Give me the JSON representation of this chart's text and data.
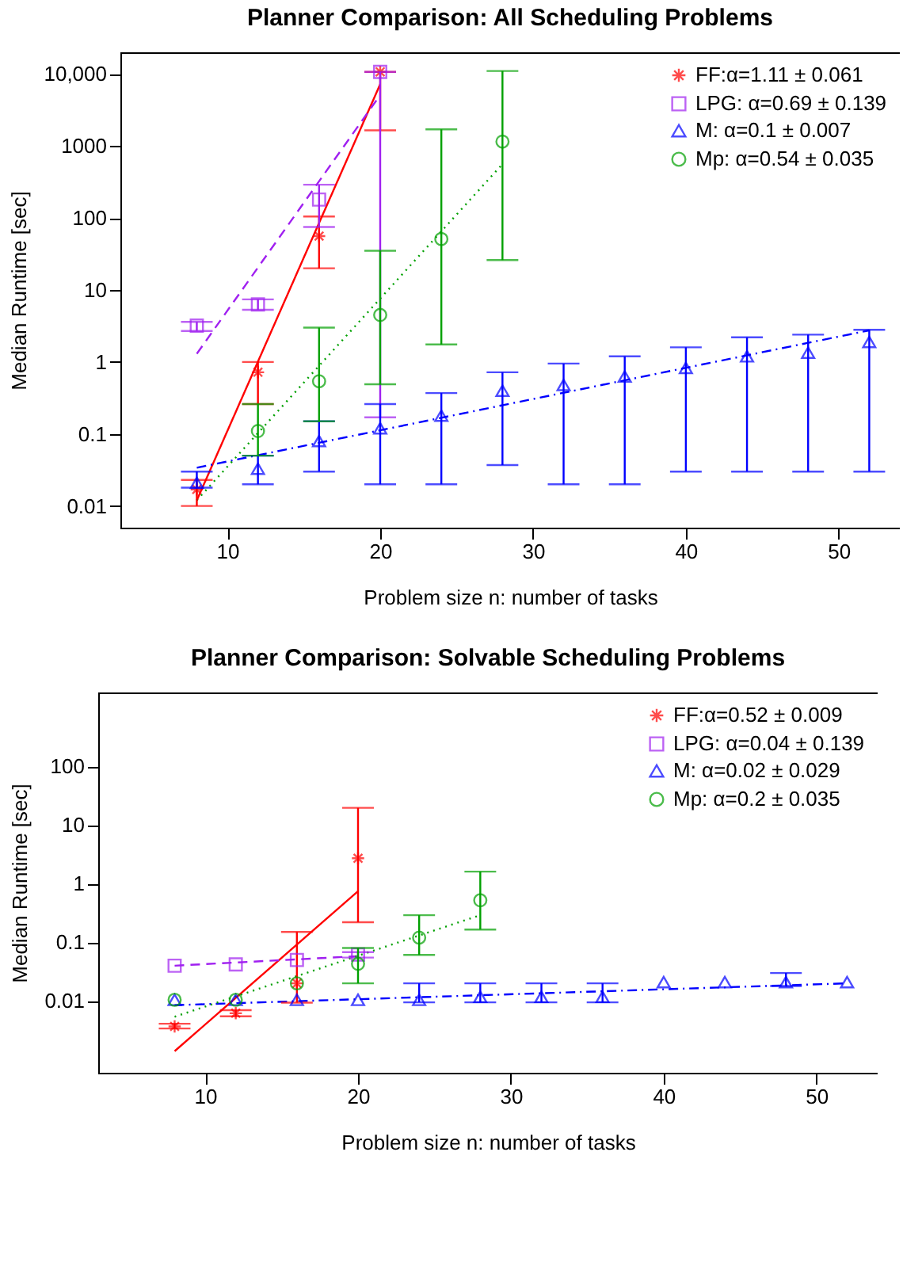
{
  "chart_data": [
    {
      "type": "scatter",
      "title": "Planner Comparison: All Scheduling Problems",
      "xlabel": "Problem size n: number of tasks",
      "ylabel": "Median Runtime [sec]",
      "log": "y",
      "grid": false,
      "legend": "top right",
      "xlim": [
        3,
        54
      ],
      "xticks": [
        10,
        20,
        30,
        40,
        50
      ],
      "ylim": [
        0.005,
        20000
      ],
      "yticks": [
        0.01,
        0.1,
        1,
        10,
        100,
        1000,
        {
          "value": 10000,
          "label": "10,000"
        }
      ],
      "series": [
        {
          "name": "FF:α=1.11 ± 0.061",
          "type": "scatter",
          "marker": "cross",
          "color": "#ff0000",
          "x": [
            8,
            12,
            16,
            20
          ],
          "values": [
            0.017,
            0.72,
            56,
            10700
          ],
          "errors": [
            [
              0.01,
              0.023
            ],
            [
              0.26,
              1.0
            ],
            [
              20,
              105
            ],
            [
              1650,
              10700
            ]
          ]
        },
        {
          "name": "LPG: α=0.69 ± 0.139",
          "type": "scatter",
          "marker": "square",
          "color": "#a020f0",
          "x": [
            8,
            12,
            16,
            20
          ],
          "values": [
            3.2,
            6.3,
            180,
            10700
          ],
          "errors": [
            [
              2.7,
              3.6
            ],
            [
              5.3,
              7.4
            ],
            [
              75,
              290
            ],
            [
              0.17,
              10700
            ]
          ]
        },
        {
          "name": "M: α=0.1 ± 0.007",
          "type": "scatter",
          "marker": "triangle",
          "color": "#0000ff",
          "x": [
            8,
            12,
            16,
            20,
            24,
            28,
            32,
            36,
            40,
            44,
            48,
            52
          ],
          "values": [
            0.021,
            0.033,
            0.08,
            0.12,
            0.18,
            0.4,
            0.48,
            0.63,
            0.83,
            1.2,
            1.35,
            1.9
          ],
          "errors": [
            [
              0.018,
              0.03
            ],
            [
              0.02,
              0.05
            ],
            [
              0.03,
              0.15
            ],
            [
              0.02,
              0.26
            ],
            [
              0.02,
              0.37
            ],
            [
              0.037,
              0.72
            ],
            [
              0.02,
              0.95
            ],
            [
              0.02,
              1.2
            ],
            [
              0.03,
              1.6
            ],
            [
              0.03,
              2.2
            ],
            [
              0.03,
              2.4
            ],
            [
              0.03,
              2.8
            ]
          ]
        },
        {
          "name": "Mp: α=0.54 ± 0.035",
          "type": "scatter",
          "marker": "circle",
          "color": "#00a000",
          "x": [
            12,
            16,
            20,
            24,
            28
          ],
          "values": [
            0.11,
            0.54,
            4.5,
            51,
            1150
          ],
          "errors": [
            [
              0.05,
              0.26
            ],
            [
              0.15,
              3.0
            ],
            [
              0.49,
              35
            ],
            [
              1.75,
              1700
            ],
            [
              26,
              11000
            ]
          ]
        },
        {
          "type": "line",
          "line_style": "solid",
          "color": "#ff0000",
          "x": [
            8,
            20
          ],
          "values": [
            0.012,
            7200
          ]
        },
        {
          "type": "line",
          "line_style": "dashed",
          "color": "#a020f0",
          "x": [
            8,
            20
          ],
          "values": [
            1.3,
            5100
          ]
        },
        {
          "type": "line",
          "line_style": "dashdot",
          "color": "#0000ff",
          "x": [
            8,
            52
          ],
          "values": [
            0.034,
            2.75
          ]
        },
        {
          "type": "line",
          "line_style": "dotted",
          "color": "#00a000",
          "x": [
            8,
            28
          ],
          "values": [
            0.012,
            560
          ]
        }
      ]
    },
    {
      "type": "scatter",
      "title": "Planner Comparison: Solvable Scheduling Problems",
      "xlabel": "Problem size n: number of tasks",
      "ylabel": "Median Runtime [sec]",
      "log": "y",
      "grid": false,
      "legend": "top right",
      "xlim": [
        3,
        54
      ],
      "xticks": [
        10,
        20,
        30,
        40,
        50
      ],
      "ylim": [
        0.0006,
        1800
      ],
      "yticks": [
        0.01,
        0.1,
        1,
        10,
        100
      ],
      "series": [
        {
          "name": "FF:α=0.52 ± 0.009",
          "type": "scatter",
          "marker": "cross",
          "color": "#ff0000",
          "x": [
            8,
            12,
            16,
            20
          ],
          "values": [
            0.0037,
            0.0062,
            0.02,
            2.7
          ],
          "errors": [
            [
              0.0034,
              0.0041
            ],
            [
              0.0055,
              0.007
            ],
            [
              0.0094,
              0.15
            ],
            [
              0.22,
              19.5
            ]
          ]
        },
        {
          "name": "LPG: α=0.04 ± 0.139",
          "type": "scatter",
          "marker": "square",
          "color": "#a020f0",
          "x": [
            8,
            12,
            16,
            20
          ],
          "values": [
            0.04,
            0.042,
            0.05,
            0.062
          ],
          "errors": [
            null,
            null,
            null,
            [
              0.055,
              0.068
            ]
          ]
        },
        {
          "name": "M: α=0.02 ± 0.029",
          "type": "scatter",
          "marker": "triangle",
          "color": "#0000ff",
          "x": [
            8,
            12,
            16,
            20,
            24,
            28,
            32,
            36,
            40,
            44,
            48,
            52
          ],
          "values": [
            0.0105,
            0.0105,
            0.0105,
            0.0105,
            0.0105,
            0.0118,
            0.0118,
            0.0118,
            0.021,
            0.021,
            0.021,
            0.021
          ],
          "errors": [
            null,
            null,
            null,
            null,
            [
              0.0095,
              0.02
            ],
            [
              0.0095,
              0.02
            ],
            [
              0.0095,
              0.02
            ],
            [
              0.0095,
              0.02
            ],
            null,
            null,
            [
              0.018,
              0.03
            ],
            null
          ]
        },
        {
          "name": "Mp: α=0.2 ± 0.035",
          "type": "scatter",
          "marker": "circle",
          "color": "#00a000",
          "x": [
            8,
            12,
            16,
            20,
            24,
            28
          ],
          "values": [
            0.0105,
            0.0105,
            0.02,
            0.043,
            0.12,
            0.52
          ],
          "errors": [
            null,
            null,
            null,
            [
              0.02,
              0.08
            ],
            [
              0.061,
              0.29
            ],
            [
              0.165,
              1.6
            ]
          ]
        },
        {
          "type": "line",
          "line_style": "solid",
          "color": "#ff0000",
          "x": [
            8,
            20
          ],
          "values": [
            0.0014,
            0.74
          ]
        },
        {
          "type": "line",
          "line_style": "dashed",
          "color": "#a020f0",
          "x": [
            8,
            20
          ],
          "values": [
            0.04,
            0.058
          ]
        },
        {
          "type": "line",
          "line_style": "dashdot",
          "color": "#0000ff",
          "x": [
            8,
            52
          ],
          "values": [
            0.0085,
            0.02
          ]
        },
        {
          "type": "line",
          "line_style": "dotted",
          "color": "#00a000",
          "x": [
            8,
            28
          ],
          "values": [
            0.0054,
            0.29
          ]
        }
      ]
    }
  ]
}
